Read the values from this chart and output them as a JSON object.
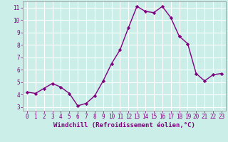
{
  "x": [
    0,
    1,
    2,
    3,
    4,
    5,
    6,
    7,
    8,
    9,
    10,
    11,
    12,
    13,
    14,
    15,
    16,
    17,
    18,
    19,
    20,
    21,
    22,
    23
  ],
  "y": [
    4.2,
    4.1,
    4.5,
    4.9,
    4.6,
    4.1,
    3.1,
    3.3,
    3.9,
    5.1,
    6.5,
    7.6,
    9.4,
    11.1,
    10.7,
    10.6,
    11.1,
    10.2,
    8.7,
    8.1,
    5.7,
    5.1,
    5.6,
    5.7
  ],
  "line_color": "#800080",
  "marker": "D",
  "marker_size": 2.2,
  "bg_color": "#cceee8",
  "grid_color": "#aadddd",
  "xlabel": "Windchill (Refroidissement éolien,°C)",
  "xlabel_color": "#800080",
  "tick_color": "#800080",
  "ylim": [
    2.7,
    11.5
  ],
  "xlim": [
    -0.5,
    23.5
  ],
  "yticks": [
    3,
    4,
    5,
    6,
    7,
    8,
    9,
    10,
    11
  ],
  "xticks": [
    0,
    1,
    2,
    3,
    4,
    5,
    6,
    7,
    8,
    9,
    10,
    11,
    12,
    13,
    14,
    15,
    16,
    17,
    18,
    19,
    20,
    21,
    22,
    23
  ],
  "tick_fontsize": 5.5,
  "xlabel_fontsize": 6.5,
  "linewidth": 1.0
}
